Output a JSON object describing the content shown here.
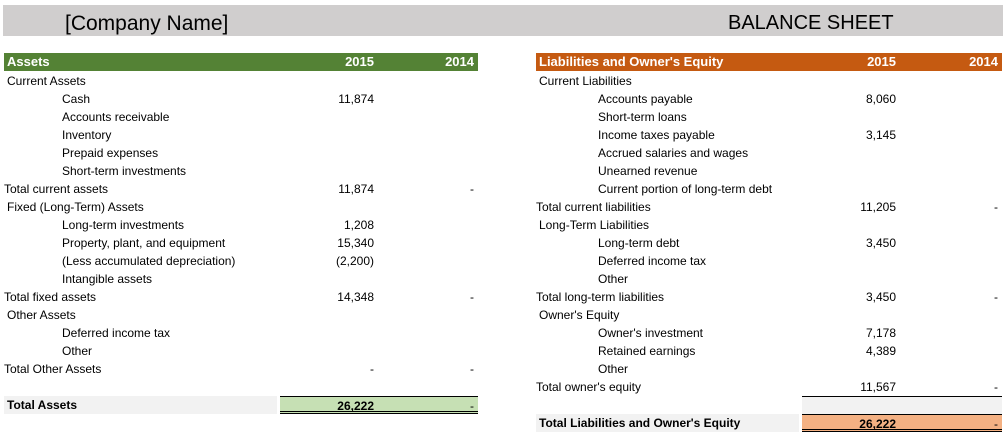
{
  "header": {
    "company_name": "[Company Name]",
    "title": "BALANCE SHEET"
  },
  "colors": {
    "assets_header": "#548235",
    "assets_section": "#c6e0b4",
    "liab_header": "#c55a11",
    "liab_section": "#f4b183"
  },
  "assets": {
    "heading": "Assets",
    "col1": "2015",
    "col2": "2014",
    "rows": [
      {
        "type": "section",
        "label": "Current Assets"
      },
      {
        "type": "item",
        "label": "Cash",
        "v1": "11,874",
        "v2": ""
      },
      {
        "type": "item",
        "label": "Accounts receivable",
        "v1": "",
        "v2": ""
      },
      {
        "type": "item",
        "label": "Inventory",
        "v1": "",
        "v2": ""
      },
      {
        "type": "item",
        "label": "Prepaid expenses",
        "v1": "",
        "v2": ""
      },
      {
        "type": "item",
        "label": "Short-term investments",
        "v1": "",
        "v2": ""
      },
      {
        "type": "total",
        "label": "Total current assets",
        "v1": "11,874",
        "v2": "-"
      },
      {
        "type": "section",
        "label": "Fixed (Long-Term) Assets"
      },
      {
        "type": "item",
        "label": "Long-term investments",
        "v1": "1,208",
        "v2": ""
      },
      {
        "type": "item",
        "label": "Property, plant, and equipment",
        "v1": "15,340",
        "v2": ""
      },
      {
        "type": "item",
        "label": "(Less accumulated depreciation)",
        "v1": "(2,200)",
        "v2": ""
      },
      {
        "type": "item",
        "label": "Intangible assets",
        "v1": "",
        "v2": ""
      },
      {
        "type": "total",
        "label": "Total fixed assets",
        "v1": "14,348",
        "v2": "-"
      },
      {
        "type": "section",
        "label": "Other Assets"
      },
      {
        "type": "item",
        "label": "Deferred income tax",
        "v1": "",
        "v2": ""
      },
      {
        "type": "item",
        "label": "Other",
        "v1": "",
        "v2": ""
      },
      {
        "type": "total",
        "label": "Total Other Assets",
        "v1": "-",
        "v2": "-"
      },
      {
        "type": "blank"
      },
      {
        "type": "grand",
        "label": "Total Assets",
        "v1": "26,222",
        "v2": "-"
      }
    ]
  },
  "liabilities": {
    "heading": "Liabilities and Owner's Equity",
    "col1": "2015",
    "col2": "2014",
    "rows": [
      {
        "type": "section",
        "label": "Current Liabilities"
      },
      {
        "type": "item",
        "label": "Accounts payable",
        "v1": "8,060",
        "v2": ""
      },
      {
        "type": "item",
        "label": "Short-term loans",
        "v1": "",
        "v2": ""
      },
      {
        "type": "item",
        "label": "Income taxes payable",
        "v1": "3,145",
        "v2": ""
      },
      {
        "type": "item",
        "label": "Accrued salaries and wages",
        "v1": "",
        "v2": ""
      },
      {
        "type": "item",
        "label": "Unearned revenue",
        "v1": "",
        "v2": ""
      },
      {
        "type": "item",
        "label": "Current portion of long-term debt",
        "v1": "",
        "v2": ""
      },
      {
        "type": "total",
        "label": "Total current liabilities",
        "v1": "11,205",
        "v2": "-"
      },
      {
        "type": "section",
        "label": "Long-Term Liabilities"
      },
      {
        "type": "item",
        "label": "Long-term debt",
        "v1": "3,450",
        "v2": ""
      },
      {
        "type": "item",
        "label": "Deferred income tax",
        "v1": "",
        "v2": ""
      },
      {
        "type": "item",
        "label": "Other",
        "v1": "",
        "v2": ""
      },
      {
        "type": "total",
        "label": "Total long-term liabilities",
        "v1": "3,450",
        "v2": "-"
      },
      {
        "type": "section",
        "label": "Owner's Equity"
      },
      {
        "type": "item",
        "label": "Owner's investment",
        "v1": "7,178",
        "v2": ""
      },
      {
        "type": "item",
        "label": "Retained earnings",
        "v1": "4,389",
        "v2": ""
      },
      {
        "type": "item",
        "label": "Other",
        "v1": "",
        "v2": ""
      },
      {
        "type": "total",
        "label": "Total owner's equity",
        "v1": "11,567",
        "v2": "-"
      },
      {
        "type": "blankgray"
      },
      {
        "type": "grand",
        "label": "Total Liabilities and Owner's Equity",
        "v1": "26,222",
        "v2": "-"
      }
    ]
  }
}
